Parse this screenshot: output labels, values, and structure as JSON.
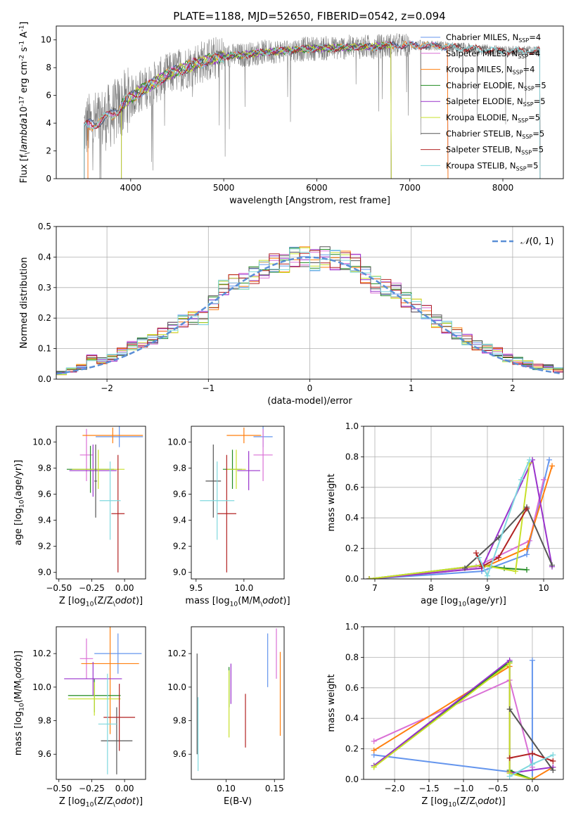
{
  "figure_title": "PLATE=1188, MJD=52650, FIBERID=0542, z=0.094",
  "colors": {
    "Chabrier MILES": "#6495ed",
    "Salpeter MILES": "#da70d6",
    "Kroupa MILES": "#ff7f0e",
    "Chabrier ELODIE": "#228b22",
    "Salpeter ELODIE": "#9932cc",
    "Kroupa ELODIE": "#c7e02a",
    "Chabrier STELIB": "#555555",
    "Salpeter STELIB": "#b22222",
    "Kroupa STELIB": "#7fd8de",
    "normal_curve": "#5b8fd6"
  },
  "chart_data": [
    {
      "id": "spectrum",
      "type": "line",
      "xlabel": "wavelength [Angstrom, rest frame]",
      "ylabel": "Flux [f$_\\lambda$10$^{-17}$ erg cm$^{-2}$ s$^{-1}$ A$^{-1}$]",
      "xlim": [
        3200,
        8650
      ],
      "ylim": [
        0,
        11
      ],
      "xticks": [
        4000,
        5000,
        6000,
        7000,
        8000
      ],
      "yticks": [
        0,
        2,
        4,
        6,
        8,
        10
      ],
      "grid": false,
      "legend_position": "top-right",
      "legend": [
        {
          "text": "Chabrier MILES, N",
          "sub": "SSP",
          "tail": "=4",
          "color": "Chabrier MILES"
        },
        {
          "text": "Salpeter MILES, N",
          "sub": "SSP",
          "tail": "=4",
          "color": "Salpeter MILES"
        },
        {
          "text": "Kroupa MILES, N",
          "sub": "SSP",
          "tail": "=4",
          "color": "Kroupa MILES"
        },
        {
          "text": "Chabrier ELODIE, N",
          "sub": "SSP",
          "tail": "=5",
          "color": "Chabrier ELODIE"
        },
        {
          "text": "Salpeter ELODIE, N",
          "sub": "SSP",
          "tail": "=5",
          "color": "Salpeter ELODIE"
        },
        {
          "text": "Kroupa ELODIE, N",
          "sub": "SSP",
          "tail": "=5",
          "color": "Kroupa ELODIE"
        },
        {
          "text": "Chabrier STELIB, N",
          "sub": "SSP",
          "tail": "=5",
          "color": "Chabrier STELIB"
        },
        {
          "text": "Salpeter STELIB, N",
          "sub": "SSP",
          "tail": "=5",
          "color": "Salpeter STELIB"
        },
        {
          "text": "Kroupa STELIB, N",
          "sub": "SSP",
          "tail": "=5",
          "color": "Kroupa STELIB"
        }
      ],
      "continuum": {
        "wavelength": [
          3500,
          3650,
          3800,
          3950,
          4100,
          4250,
          4400,
          4550,
          4700,
          4850,
          5000,
          5200,
          5400,
          5600,
          5800,
          6000,
          6200,
          6400,
          6600,
          6800,
          7000,
          7200,
          7400,
          7600,
          7800,
          8000,
          8200,
          8400
        ],
        "flux": [
          3.7,
          4.1,
          4.6,
          5.6,
          6.3,
          6.9,
          7.5,
          7.9,
          8.3,
          8.6,
          8.8,
          8.9,
          9.1,
          9.2,
          9.3,
          9.4,
          9.4,
          9.5,
          9.5,
          9.6,
          9.6,
          9.6,
          9.5,
          9.4,
          9.3,
          9.2,
          9.2,
          9.2
        ]
      },
      "model_ranges": {
        "MILES": [
          3540,
          7410
        ],
        "ELODIE": [
          3900,
          6800
        ],
        "STELIB": [
          3500,
          8400
        ]
      }
    },
    {
      "id": "residuals",
      "type": "bar",
      "xlabel": "(data-model)/error",
      "ylabel": "Normed distribution",
      "xlim": [
        -2.5,
        2.5
      ],
      "ylim": [
        0,
        0.5
      ],
      "xticks": [
        -2,
        -1,
        0,
        1,
        2
      ],
      "yticks": [
        0.0,
        0.1,
        0.2,
        0.3,
        0.4,
        0.5
      ],
      "grid": true,
      "legend_position": "top-right",
      "legend": [
        {
          "text": "\u0001D4A9(0, 1)"
        }
      ],
      "bins": [
        -2.5,
        -2.4,
        -2.3,
        -2.2,
        -2.1,
        -2.0,
        -1.9,
        -1.8,
        -1.7,
        -1.6,
        -1.5,
        -1.4,
        -1.3,
        -1.2,
        -1.1,
        -1.0,
        -0.9,
        -0.8,
        -0.7,
        -0.6,
        -0.5,
        -0.4,
        -0.3,
        -0.2,
        -0.1,
        0.0,
        0.1,
        0.2,
        0.3,
        0.4,
        0.5,
        0.6,
        0.7,
        0.8,
        0.9,
        1.0,
        1.1,
        1.2,
        1.3,
        1.4,
        1.5,
        1.6,
        1.7,
        1.8,
        1.9,
        2.0,
        2.1,
        2.2,
        2.3,
        2.4,
        2.5
      ],
      "hist_values": [
        0.02,
        0.03,
        0.04,
        0.07,
        0.06,
        0.07,
        0.09,
        0.11,
        0.12,
        0.13,
        0.15,
        0.17,
        0.19,
        0.2,
        0.2,
        0.25,
        0.3,
        0.32,
        0.32,
        0.34,
        0.36,
        0.38,
        0.38,
        0.4,
        0.4,
        0.39,
        0.4,
        0.39,
        0.39,
        0.38,
        0.34,
        0.31,
        0.3,
        0.29,
        0.26,
        0.24,
        0.22,
        0.19,
        0.17,
        0.15,
        0.13,
        0.11,
        0.1,
        0.09,
        0.07,
        0.06,
        0.05,
        0.04,
        0.04,
        0.03
      ],
      "normal_curve": {
        "mean": 0,
        "sigma": 1
      }
    },
    {
      "id": "age_vs_Z",
      "type": "scatter",
      "xlabel": "Z [log$_{10}$(Z/Z$_\\odot$)]",
      "ylabel": "age  [log$_{10}$(age/yr)]",
      "xlim": [
        -0.52,
        0.16
      ],
      "ylim": [
        8.95,
        10.12
      ],
      "xticks": [
        -0.5,
        -0.25,
        0.0
      ],
      "xticklabels": [
        "−0.50",
        "−0.25",
        "0.00"
      ],
      "yticks": [
        9.0,
        9.2,
        9.4,
        9.6,
        9.8,
        10.0
      ],
      "grid": false,
      "points": [
        {
          "model": "Chabrier MILES",
          "x": -0.04,
          "y": 10.04,
          "xerr": 0.18,
          "yerr": 0.08
        },
        {
          "model": "Salpeter MILES",
          "x": -0.29,
          "y": 9.9,
          "xerr": 0.05,
          "yerr": 0.2
        },
        {
          "model": "Kroupa MILES",
          "x": -0.09,
          "y": 10.05,
          "xerr": 0.23,
          "yerr": 0.06
        },
        {
          "model": "Chabrier ELODIE",
          "x": -0.26,
          "y": 9.79,
          "xerr": 0.18,
          "yerr": 0.18
        },
        {
          "model": "Salpeter ELODIE",
          "x": -0.24,
          "y": 9.78,
          "xerr": 0.18,
          "yerr": 0.2
        },
        {
          "model": "Kroupa ELODIE",
          "x": -0.2,
          "y": 9.79,
          "xerr": 0.2,
          "yerr": 0.15
        },
        {
          "model": "Chabrier STELIB",
          "x": -0.22,
          "y": 9.7,
          "xerr": 0.01,
          "yerr": 0.28
        },
        {
          "model": "Salpeter STELIB",
          "x": -0.05,
          "y": 9.45,
          "xerr": 0.05,
          "yerr": 0.45
        },
        {
          "model": "Kroupa STELIB",
          "x": -0.11,
          "y": 9.55,
          "xerr": 0.08,
          "yerr": 0.3
        }
      ]
    },
    {
      "id": "age_vs_mass",
      "type": "scatter",
      "xlabel": "mass [log$_{10}$(M/M$_\\odot$)]",
      "ylabel": "",
      "xlim": [
        9.45,
        10.42
      ],
      "ylim": [
        8.95,
        10.12
      ],
      "xticks": [
        9.5,
        10.0
      ],
      "xticklabels": [
        "9.5",
        "10.0"
      ],
      "yticks": [
        9.0,
        9.2,
        9.4,
        9.6,
        9.8,
        10.0
      ],
      "grid": false,
      "points": [
        {
          "model": "Chabrier MILES",
          "x": 10.2,
          "y": 10.04,
          "xerr": 0.1,
          "yerr": 0.08
        },
        {
          "model": "Salpeter MILES",
          "x": 10.2,
          "y": 9.9,
          "xerr": 0.1,
          "yerr": 0.2
        },
        {
          "model": "Kroupa MILES",
          "x": 10.0,
          "y": 10.05,
          "xerr": 0.18,
          "yerr": 0.06
        },
        {
          "model": "Chabrier ELODIE",
          "x": 9.88,
          "y": 9.79,
          "xerr": 0.1,
          "yerr": 0.15
        },
        {
          "model": "Salpeter ELODIE",
          "x": 10.05,
          "y": 9.78,
          "xerr": 0.12,
          "yerr": 0.15
        },
        {
          "model": "Kroupa ELODIE",
          "x": 9.92,
          "y": 9.79,
          "xerr": 0.1,
          "yerr": 0.15
        },
        {
          "model": "Chabrier STELIB",
          "x": 9.68,
          "y": 9.7,
          "xerr": 0.08,
          "yerr": 0.28
        },
        {
          "model": "Salpeter STELIB",
          "x": 9.82,
          "y": 9.45,
          "xerr": 0.1,
          "yerr": 0.45
        },
        {
          "model": "Kroupa STELIB",
          "x": 9.72,
          "y": 9.55,
          "xerr": 0.18,
          "yerr": 0.3
        }
      ]
    },
    {
      "id": "weight_vs_age",
      "type": "line",
      "xlabel": "age  [log$_{10}$(age/yr)]",
      "ylabel": "mass weight",
      "xlim": [
        6.8,
        10.35
      ],
      "ylim": [
        0,
        1.0
      ],
      "xticks": [
        7,
        8,
        9,
        10
      ],
      "yticks": [
        0.0,
        0.2,
        0.4,
        0.6,
        0.8,
        1.0
      ],
      "grid": true,
      "series": [
        {
          "model": "Chabrier MILES",
          "x": [
            6.9,
            8.9,
            9.7,
            10.1
          ],
          "y": [
            0.0,
            0.05,
            0.16,
            0.78
          ]
        },
        {
          "model": "Salpeter MILES",
          "x": [
            6.9,
            8.8,
            9.75,
            10.0
          ],
          "y": [
            0.0,
            0.08,
            0.25,
            0.65
          ]
        },
        {
          "model": "Kroupa MILES",
          "x": [
            6.9,
            8.9,
            9.7,
            10.15
          ],
          "y": [
            0.0,
            0.07,
            0.2,
            0.74
          ]
        },
        {
          "model": "Chabrier ELODIE",
          "x": [
            6.9,
            8.9,
            9.3,
            9.7
          ],
          "y": [
            0.0,
            0.09,
            0.07,
            0.06
          ]
        },
        {
          "model": "Salpeter ELODIE",
          "x": [
            6.9,
            8.9,
            9.8,
            10.15
          ],
          "y": [
            0.0,
            0.07,
            0.78,
            0.08
          ]
        },
        {
          "model": "Kroupa ELODIE",
          "x": [
            6.9,
            8.9,
            9.5,
            9.75
          ],
          "y": [
            0.0,
            0.09,
            0.05,
            0.76
          ]
        },
        {
          "model": "Chabrier STELIB",
          "x": [
            8.6,
            9.2,
            9.7,
            10.15
          ],
          "y": [
            0.07,
            0.27,
            0.47,
            0.09
          ]
        },
        {
          "model": "Salpeter STELIB",
          "x": [
            8.8,
            8.9,
            9.2,
            9.7
          ],
          "y": [
            0.17,
            0.08,
            0.14,
            0.46
          ]
        },
        {
          "model": "Kroupa STELIB",
          "x": [
            8.85,
            9.0,
            9.6,
            9.75
          ],
          "y": [
            0.14,
            0.02,
            0.65,
            0.78
          ]
        }
      ]
    },
    {
      "id": "mass_vs_Z",
      "type": "scatter",
      "xlabel": "Z [log$_{10}$(Z/Z$_\\odot$)]",
      "ylabel": "mass [log$_{10}$(M/M$_\\odot$)]",
      "xlim": [
        -0.52,
        0.16
      ],
      "ylim": [
        9.45,
        10.36
      ],
      "xticks": [
        -0.5,
        -0.25,
        0.0
      ],
      "xticklabels": [
        "−0.50",
        "−0.25",
        "0.00"
      ],
      "yticks": [
        9.6,
        9.8,
        10.0,
        10.2
      ],
      "grid": false,
      "points": [
        {
          "model": "Chabrier MILES",
          "x": -0.05,
          "y": 10.2,
          "xerr": 0.18,
          "yerr": 0.12
        },
        {
          "model": "Salpeter MILES",
          "x": -0.29,
          "y": 10.17,
          "xerr": 0.05,
          "yerr": 0.12
        },
        {
          "model": "Kroupa MILES",
          "x": -0.11,
          "y": 10.14,
          "xerr": 0.22,
          "yerr": 0.42
        },
        {
          "model": "Chabrier ELODIE",
          "x": -0.23,
          "y": 9.95,
          "xerr": 0.2,
          "yerr": 0.1
        },
        {
          "model": "Salpeter ELODIE",
          "x": -0.24,
          "y": 10.05,
          "xerr": 0.22,
          "yerr": 0.1
        },
        {
          "model": "Kroupa ELODIE",
          "x": -0.23,
          "y": 9.93,
          "xerr": 0.2,
          "yerr": 0.1
        },
        {
          "model": "Chabrier STELIB",
          "x": -0.06,
          "y": 9.68,
          "xerr": 0.12,
          "yerr": 0.2
        },
        {
          "model": "Salpeter STELIB",
          "x": -0.04,
          "y": 9.82,
          "xerr": 0.12,
          "yerr": 0.2
        },
        {
          "model": "Kroupa STELIB",
          "x": -0.13,
          "y": 9.78,
          "xerr": 0.07,
          "yerr": 0.3
        }
      ]
    },
    {
      "id": "mass_vs_ebv",
      "type": "scatter",
      "xlabel": "E(B-V)",
      "ylabel": "",
      "xlim": [
        0.064,
        0.16
      ],
      "ylim": [
        9.45,
        10.36
      ],
      "xticks": [
        0.1,
        0.15
      ],
      "xticklabels": [
        "0.10",
        "0.15"
      ],
      "yticks": [
        9.6,
        9.8,
        10.0,
        10.2
      ],
      "grid": false,
      "points": [
        {
          "model": "Chabrier MILES",
          "x": 0.143,
          "y": 10.16,
          "xerr": 0,
          "yerr": 0.16
        },
        {
          "model": "Salpeter MILES",
          "x": 0.152,
          "y": 10.2,
          "xerr": 0,
          "yerr": 0.15
        },
        {
          "model": "Kroupa MILES",
          "x": 0.156,
          "y": 9.96,
          "xerr": 0,
          "yerr": 0.25
        },
        {
          "model": "Chabrier ELODIE",
          "x": 0.103,
          "y": 10.0,
          "xerr": 0,
          "yerr": 0.12
        },
        {
          "model": "Salpeter ELODIE",
          "x": 0.105,
          "y": 10.02,
          "xerr": 0,
          "yerr": 0.12
        },
        {
          "model": "Kroupa ELODIE",
          "x": 0.103,
          "y": 9.9,
          "xerr": 0,
          "yerr": 0.2
        },
        {
          "model": "Chabrier STELIB",
          "x": 0.07,
          "y": 9.9,
          "xerr": 0,
          "yerr": 0.3
        },
        {
          "model": "Salpeter STELIB",
          "x": 0.12,
          "y": 9.8,
          "xerr": 0,
          "yerr": 0.16
        },
        {
          "model": "Kroupa STELIB",
          "x": 0.071,
          "y": 9.72,
          "xerr": 0,
          "yerr": 0.22
        }
      ]
    },
    {
      "id": "weight_vs_Z",
      "type": "line",
      "xlabel": "Z [log$_{10}$(Z/Z$_\\odot$)]",
      "ylabel": "mass weight",
      "xlim": [
        -2.45,
        0.45
      ],
      "ylim": [
        0,
        1.0
      ],
      "xticks": [
        -2.0,
        -1.5,
        -1.0,
        -0.5,
        0.0
      ],
      "xticklabels": [
        "−2.0",
        "−1.5",
        "−1.0",
        "−0.5",
        "0.0"
      ],
      "yticks": [
        0.0,
        0.2,
        0.4,
        0.6,
        0.8,
        1.0
      ],
      "grid": true,
      "series": [
        {
          "model": "Chabrier MILES",
          "x": [
            -2.3,
            -0.33,
            0.0,
            0.0
          ],
          "y": [
            0.16,
            0.05,
            0.0,
            0.78
          ]
        },
        {
          "model": "Salpeter MILES",
          "x": [
            -2.3,
            -0.33,
            0.0
          ],
          "y": [
            0.25,
            0.65,
            0.08
          ]
        },
        {
          "model": "Kroupa MILES",
          "x": [
            -2.3,
            -0.33,
            -0.33,
            0.0,
            0.3
          ],
          "y": [
            0.19,
            0.74,
            0.05,
            0.0,
            0.08
          ]
        },
        {
          "model": "Chabrier ELODIE",
          "x": [
            -2.3,
            -0.33,
            -0.33,
            0.0
          ],
          "y": [
            0.09,
            0.77,
            0.06,
            0.0
          ]
        },
        {
          "model": "Salpeter ELODIE",
          "x": [
            -2.3,
            -0.33,
            -0.33,
            0.3
          ],
          "y": [
            0.09,
            0.78,
            0.04,
            0.08
          ]
        },
        {
          "model": "Kroupa ELODIE",
          "x": [
            -2.3,
            -0.33,
            -0.33,
            0.0
          ],
          "y": [
            0.08,
            0.76,
            0.04,
            0.0
          ]
        },
        {
          "model": "Chabrier STELIB",
          "x": [
            -0.33,
            0.3
          ],
          "y": [
            0.46,
            0.06
          ]
        },
        {
          "model": "Salpeter STELIB",
          "x": [
            -0.33,
            0.0,
            0.3
          ],
          "y": [
            0.14,
            0.17,
            0.12
          ]
        },
        {
          "model": "Kroupa STELIB",
          "x": [
            -0.33,
            0.0,
            0.3
          ],
          "y": [
            0.02,
            0.1,
            0.16
          ]
        }
      ]
    }
  ]
}
